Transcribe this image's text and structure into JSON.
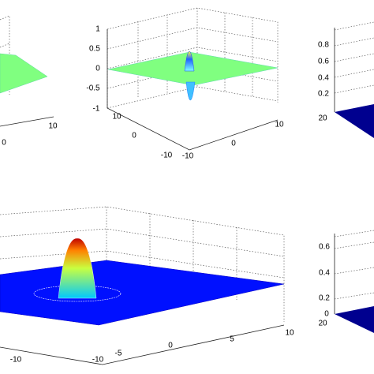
{
  "panels": [
    {
      "x_ticks": [
        "10",
        "0"
      ]
    },
    {
      "z_ticks": [
        "1",
        "0.5",
        "0",
        "-0.5",
        "-1"
      ],
      "y_ticks": [
        "10",
        "0",
        "-10"
      ],
      "x_ticks": [
        "-10",
        "0",
        "10"
      ]
    },
    {
      "z_ticks": [
        "0.8",
        "0.6",
        "0.4",
        "0.2"
      ],
      "y_ticks": [
        "20"
      ]
    },
    {
      "x_ticks": [
        "10",
        "5",
        "0",
        "-5",
        "-10"
      ],
      "y_ticks": [
        "-10"
      ]
    },
    {
      "z_ticks": [
        "0.6",
        "0.4",
        "0.2",
        "0"
      ],
      "y_ticks": [
        "20"
      ]
    }
  ]
}
